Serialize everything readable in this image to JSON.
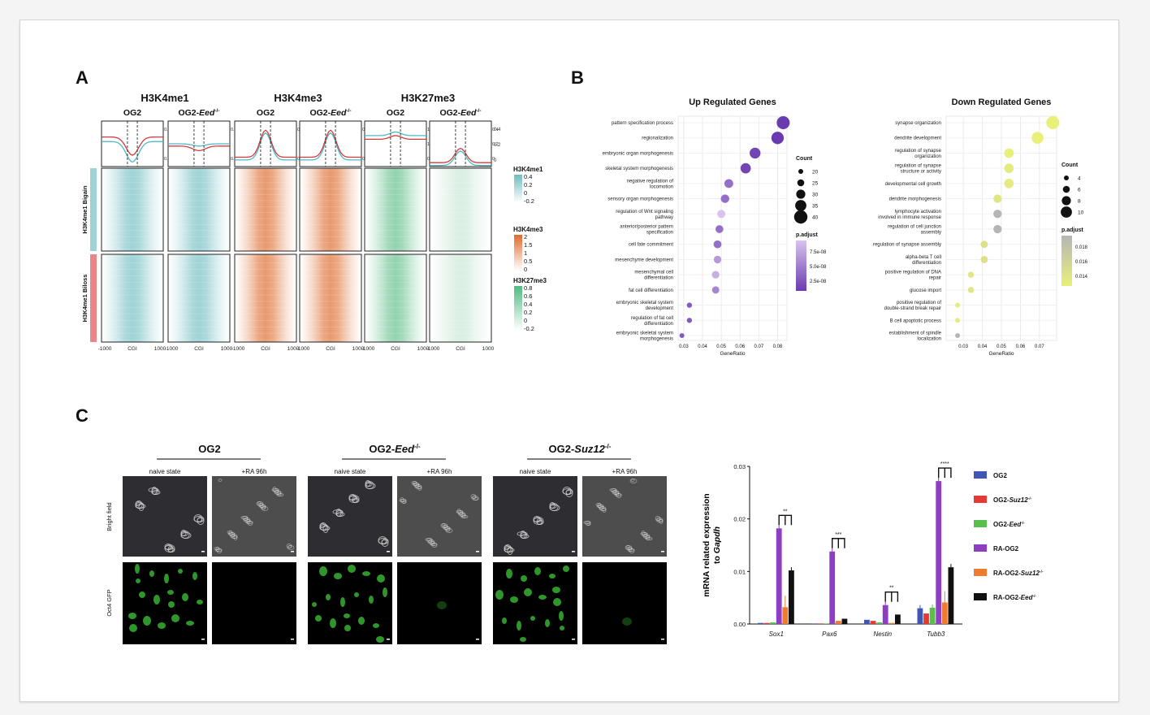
{
  "colors": {
    "me1": "#9fd3d6",
    "me3": "#e89a6f",
    "k27": "#93d3b0",
    "up_grad": [
      "#d8c4ec",
      "#6a3ab0"
    ],
    "down_grad": [
      "#e9f07a",
      "#bdbdbd"
    ],
    "bars": [
      "#3f56b6",
      "#e53935",
      "#58c04a",
      "#8e3ec1",
      "#ee7b2e",
      "#111111"
    ]
  },
  "panelA": {
    "letter": "A",
    "marks": [
      {
        "name": "H3K4me1",
        "color": "#9fd3d6",
        "samples": [
          {
            "pre": "OG2",
            "it": "",
            "sup": ""
          },
          {
            "pre": "OG2-",
            "it": "Eed",
            "sup": "-/-"
          }
        ]
      },
      {
        "name": "H3K4me3",
        "color": "#e89a6f",
        "samples": [
          {
            "pre": "OG2",
            "it": "",
            "sup": ""
          },
          {
            "pre": "OG2-",
            "it": "Eed",
            "sup": "-/-"
          }
        ]
      },
      {
        "name": "H3K27me3",
        "color": "#93d3b0",
        "samples": [
          {
            "pre": "OG2",
            "it": "",
            "sup": ""
          },
          {
            "pre": "OG2-",
            "it": "Eed",
            "sup": "-/-"
          }
        ]
      }
    ],
    "profile_ticks": [
      [
        "0.2",
        "0.1"
      ],
      [
        "0.2",
        "0.1"
      ],
      [
        "0.2",
        "0.1"
      ],
      [
        "0.2",
        "0.1"
      ],
      [
        "1.5",
        "1",
        "0.5"
      ],
      [
        "0.4",
        "0.2",
        "0"
      ]
    ],
    "right_ticks": [
      "0.4",
      "0.2",
      "0"
    ],
    "row_groups": [
      "H3K4me1 Bigain",
      "H3K4me1 Biloss"
    ],
    "x_ticks": [
      "-1000",
      "CGI",
      "1000"
    ],
    "legends": [
      {
        "title": "H3K4me1",
        "ticks": [
          "0.4",
          "0.2",
          "0",
          "-0.2"
        ],
        "colors": [
          "#6fbcbf",
          "#ffffff"
        ]
      },
      {
        "title": "H3K4me3",
        "ticks": [
          "2",
          "1.5",
          "1",
          "0.5",
          "0"
        ],
        "colors": [
          "#e26a2c",
          "#ffffff"
        ]
      },
      {
        "title": "H3K27me3",
        "ticks": [
          "0.8",
          "0.6",
          "0.4",
          "0.2",
          "0",
          "-0.2"
        ],
        "colors": [
          "#4fbb82",
          "#ffffff"
        ]
      }
    ]
  },
  "panelB": {
    "letter": "B",
    "up": {
      "title": "Up Regulated Genes",
      "xlabel": "GeneRatio",
      "x_ticks": [
        "0.03",
        "0.04",
        "0.05",
        "0.06",
        "0.07",
        "0.08"
      ],
      "terms": [
        "pattern specification process",
        "regionalization",
        "embryonic organ morphogenesis",
        "skeletal system morphogenesis",
        "negative regulation of|locomotion",
        "sensory organ morphogenesis",
        "regulation of Wnt signaling|pathway",
        "anterior/posterior pattern|specification",
        "cell fate commitment",
        "mesenchyme development",
        "mesenchymal cell|differentiation",
        "fat cell differentiation",
        "embryonic skeletal system|development",
        "regulation of fat cell|differentiation",
        "embryonic skeletal system|morphogenesis"
      ],
      "legend": {
        "count_title": "Count",
        "count_ticks": [
          "20",
          "25",
          "30",
          "35",
          "40"
        ],
        "p_title": "p.adjust",
        "p_ticks": [
          "7.5e-08",
          "5.0e-08",
          "2.5e-08"
        ]
      }
    },
    "down": {
      "title": "Down Regulated Genes",
      "xlabel": "GeneRatio",
      "x_ticks": [
        "0.03",
        "0.04",
        "0.05",
        "0.06",
        "0.07"
      ],
      "terms": [
        "synapse organization",
        "dendrite development",
        "regulation of synapse|organization",
        "regulation of synapse|structure or activity",
        "developmental cell growth",
        "dendrite morphogenesis",
        "lymphocyte activation|involved in immune response",
        "regulation of cell junction|assembly",
        "regulation of synapse assembly",
        "alpha-beta T cell|differentiation",
        "positive regulation of DNA|repair",
        "glucose import",
        "positive regulation of|double-strand break repair",
        "B cell apoptotic process",
        "establishment of spindle|localization"
      ],
      "legend": {
        "count_title": "Count",
        "count_ticks": [
          "4",
          "6",
          "8",
          "10"
        ],
        "p_title": "p.adjust",
        "p_ticks": [
          "0.018",
          "0.016",
          "0.014"
        ]
      }
    }
  },
  "panelC": {
    "letter": "C",
    "groups": [
      {
        "pre": "OG2",
        "it": "",
        "sup": ""
      },
      {
        "pre": "OG2-",
        "it": "Eed",
        "sup": "-/-"
      },
      {
        "pre": "OG2-",
        "it": "Suz12",
        "sup": "-/-"
      }
    ],
    "conditions": [
      "naive state",
      "+RA 96h"
    ],
    "row_labels": [
      "Bright field",
      "Oct4 GFP"
    ]
  },
  "chart_data": [
    {
      "type": "heatmap",
      "x": [
        "-1000",
        "CGI",
        "1000"
      ],
      "columns": [
        "H3K4me1 OG2",
        "H3K4me1 OG2-Eed-/-",
        "H3K4me3 OG2",
        "H3K4me3 OG2-Eed-/-",
        "H3K27me3 OG2",
        "H3K27me3 OG2-Eed-/-"
      ],
      "rows": [
        "H3K4me1 Bigain",
        "H3K4me1 Biloss"
      ]
    },
    {
      "type": "scatter",
      "title": "Up Regulated Genes",
      "xlabel": "GeneRatio",
      "xlim": [
        0.027,
        0.085
      ],
      "x": [
        0.083,
        0.08,
        0.068,
        0.063,
        0.054,
        0.052,
        0.05,
        0.049,
        0.048,
        0.048,
        0.047,
        0.047,
        0.033,
        0.033,
        0.029
      ],
      "count": [
        42,
        40,
        35,
        33,
        28,
        27,
        26,
        25,
        25,
        24,
        24,
        23,
        16,
        16,
        15
      ],
      "p_adjust": [
        2.5e-08,
        2.5e-08,
        3e-08,
        3e-08,
        5e-08,
        5e-08,
        9e-08,
        5e-08,
        5e-08,
        7e-08,
        8e-08,
        6e-08,
        4e-08,
        4e-08,
        4e-08
      ]
    },
    {
      "type": "scatter",
      "title": "Down Regulated Genes",
      "xlabel": "GeneRatio",
      "xlim": [
        0.021,
        0.079
      ],
      "x": [
        0.077,
        0.069,
        0.054,
        0.054,
        0.054,
        0.048,
        0.048,
        0.048,
        0.041,
        0.041,
        0.034,
        0.034,
        0.027,
        0.027,
        0.027
      ],
      "count": [
        11,
        10,
        8,
        8,
        8,
        7,
        7,
        7,
        6,
        6,
        5,
        5,
        4,
        4,
        4
      ],
      "p_adjust": [
        0.0135,
        0.0135,
        0.0135,
        0.014,
        0.014,
        0.0145,
        0.019,
        0.019,
        0.015,
        0.015,
        0.0145,
        0.0145,
        0.014,
        0.014,
        0.019
      ]
    },
    {
      "type": "bar",
      "ylabel": "mRNA related expression to Gapdh",
      "ylim": [
        0,
        0.03
      ],
      "y_ticks": [
        "0.00",
        "0.01",
        "0.02",
        "0.03"
      ],
      "categories": [
        "Sox1",
        "Pax6",
        "Nestin",
        "Tubb3"
      ],
      "series": [
        {
          "name": "OG2",
          "values": [
            0.0002,
            0.0001,
            0.0008,
            0.003
          ]
        },
        {
          "name": "OG2-Suz12-/-",
          "values": [
            0.0002,
            0.0001,
            0.0006,
            0.002
          ]
        },
        {
          "name": "OG2-Eed-/-",
          "values": [
            0.0003,
            0.0001,
            0.0003,
            0.0031
          ]
        },
        {
          "name": "RA-OG2",
          "values": [
            0.0182,
            0.0138,
            0.0036,
            0.0272
          ]
        },
        {
          "name": "RA-OG2-Suz12-/-",
          "values": [
            0.0032,
            0.0006,
            0.0002,
            0.0041
          ]
        },
        {
          "name": "RA-OG2-Eed-/-",
          "values": [
            0.0102,
            0.001,
            0.0018,
            0.0108
          ]
        }
      ],
      "legend_items": [
        {
          "pre": "OG2",
          "sup": ""
        },
        {
          "pre": "OG2-",
          "it": "Suz12",
          "sup": "-/-"
        },
        {
          "pre": "OG2-",
          "it": "Eed",
          "sup": "-/-"
        },
        {
          "pre": "RA-OG2",
          "sup": ""
        },
        {
          "pre": "RA-OG2-",
          "it": "Suz12",
          "sup": "-/-"
        },
        {
          "pre": "RA-OG2-",
          "it": "Eed",
          "sup": "-/-"
        }
      ],
      "significance": [
        "**",
        "***",
        "**",
        "****"
      ]
    }
  ]
}
